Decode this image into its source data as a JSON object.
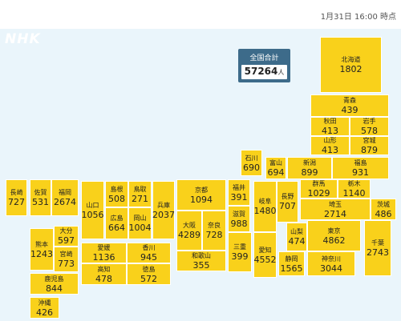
{
  "timestamp": "1月31日 16:00 時点",
  "logo": "NHK",
  "total": {
    "label": "全国合計",
    "value": "57264",
    "unit": "人"
  },
  "prefectures": {
    "hokkaido": {
      "name": "北海道",
      "value": "1802"
    },
    "aomori": {
      "name": "青森",
      "value": "439"
    },
    "akita": {
      "name": "秋田",
      "value": "413"
    },
    "iwate": {
      "name": "岩手",
      "value": "578"
    },
    "yamagata": {
      "name": "山形",
      "value": "413"
    },
    "miyagi": {
      "name": "宮城",
      "value": "879"
    },
    "ishikawa": {
      "name": "石川",
      "value": "690"
    },
    "toyama": {
      "name": "富山",
      "value": "694"
    },
    "niigata": {
      "name": "新潟",
      "value": "899"
    },
    "fukushima": {
      "name": "福島",
      "value": "931"
    },
    "nagasaki": {
      "name": "長崎",
      "value": "727"
    },
    "saga": {
      "name": "佐賀",
      "value": "531"
    },
    "fukuoka": {
      "name": "福岡",
      "value": "2674"
    },
    "yamaguchi": {
      "name": "山口",
      "value": "1056"
    },
    "shimane": {
      "name": "島根",
      "value": "508"
    },
    "tottori": {
      "name": "鳥取",
      "value": "271"
    },
    "hyogo": {
      "name": "兵庫",
      "value": "2037"
    },
    "kyoto": {
      "name": "京都",
      "value": "1094"
    },
    "fukui": {
      "name": "福井",
      "value": "391"
    },
    "gifu": {
      "name": "岐阜",
      "value": "1480"
    },
    "nagano": {
      "name": "長野",
      "value": "707"
    },
    "gunma": {
      "name": "群馬",
      "value": "1029"
    },
    "tochigi": {
      "name": "栃木",
      "value": "1140"
    },
    "ibaraki": {
      "name": "茨城",
      "value": "486"
    },
    "hiroshima": {
      "name": "広島",
      "value": "664"
    },
    "okayama": {
      "name": "岡山",
      "value": "1004"
    },
    "shiga": {
      "name": "滋賀",
      "value": "988"
    },
    "saitama": {
      "name": "埼玉",
      "value": "2714"
    },
    "kumamoto": {
      "name": "熊本",
      "value": "1243"
    },
    "oita": {
      "name": "大分",
      "value": "597"
    },
    "miyazaki": {
      "name": "宮崎",
      "value": "773"
    },
    "osaka": {
      "name": "大阪",
      "value": "4289"
    },
    "nara": {
      "name": "奈良",
      "value": "728"
    },
    "aichi": {
      "name": "愛知",
      "value": "4552"
    },
    "yamanashi": {
      "name": "山梨",
      "value": "474"
    },
    "tokyo": {
      "name": "東京",
      "value": "4862"
    },
    "chiba": {
      "name": "千葉",
      "value": "2743"
    },
    "ehime": {
      "name": "愛媛",
      "value": "1136"
    },
    "kagawa": {
      "name": "香川",
      "value": "945"
    },
    "mie": {
      "name": "三重",
      "value": "399"
    },
    "kochi": {
      "name": "高知",
      "value": "478"
    },
    "tokushima": {
      "name": "徳島",
      "value": "572"
    },
    "wakayama": {
      "name": "和歌山",
      "value": "355"
    },
    "shizuoka": {
      "name": "静岡",
      "value": "1565"
    },
    "kanagawa": {
      "name": "神奈川",
      "value": "3044"
    },
    "kagoshima": {
      "name": "鹿児島",
      "value": "844"
    },
    "okinawa": {
      "name": "沖縄",
      "value": "426"
    }
  }
}
